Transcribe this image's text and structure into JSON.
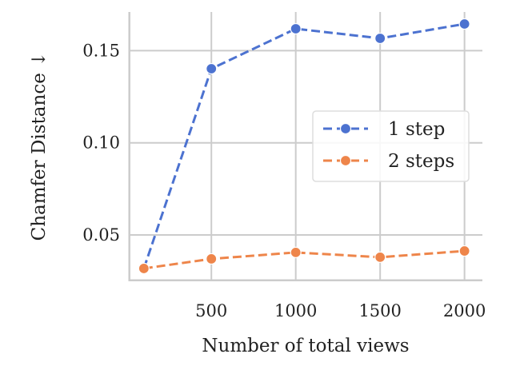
{
  "chart_data": {
    "type": "line",
    "title": "",
    "xlabel": "Number of total views",
    "ylabel": "Chamfer Distance ↓",
    "xlim": [
      14,
      2106
    ],
    "ylim": [
      0.0254,
      0.171
    ],
    "xticks": [
      500,
      1000,
      1500,
      2000
    ],
    "xtick_labels": [
      "500",
      "1000",
      "1500",
      "2000"
    ],
    "yticks": [
      0.05,
      0.1,
      0.15
    ],
    "ytick_labels": [
      "0.05",
      "0.10",
      "0.15"
    ],
    "grid": true,
    "legend_position": "center-right",
    "x": [
      100,
      500,
      1000,
      1500,
      2000
    ],
    "series": [
      {
        "name": "1 step",
        "color": "#4c72d0",
        "linestyle": "dashed",
        "marker": "circle",
        "values": [
          0.0318,
          0.1402,
          0.1619,
          0.1567,
          0.1645
        ]
      },
      {
        "name": "2 steps",
        "color": "#ee854a",
        "linestyle": "dashed",
        "marker": "circle",
        "values": [
          0.0318,
          0.037,
          0.0405,
          0.0379,
          0.0413
        ]
      }
    ]
  }
}
